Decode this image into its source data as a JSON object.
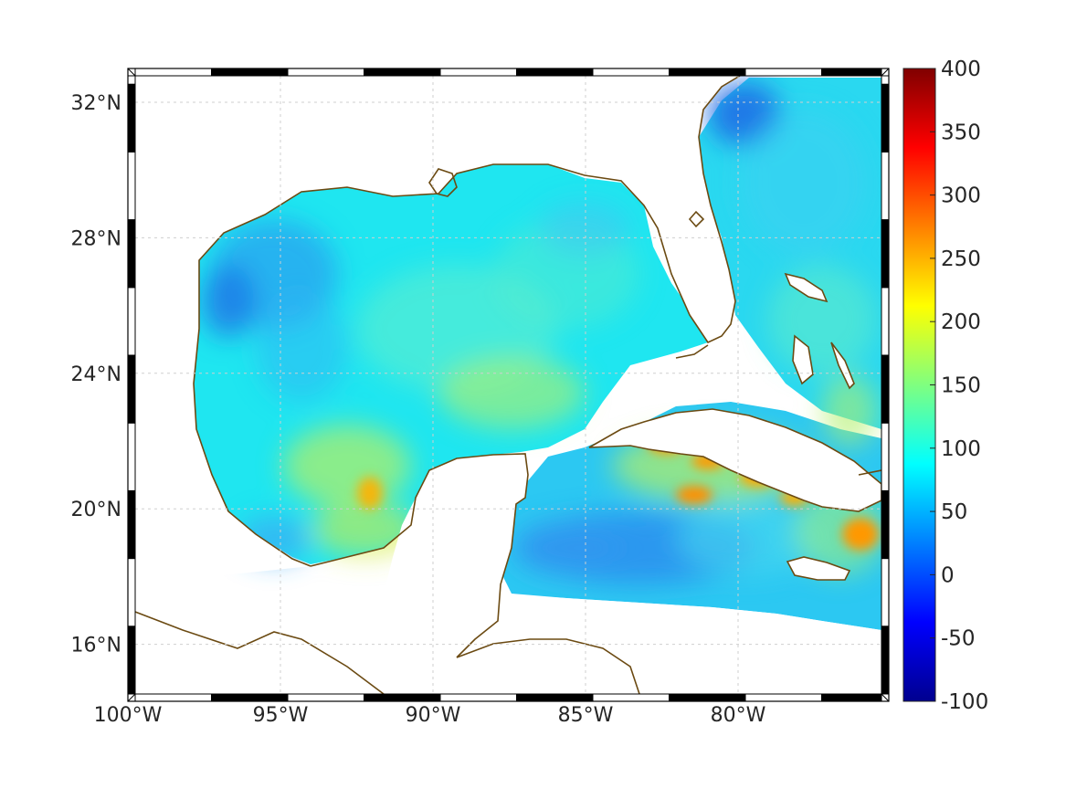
{
  "map": {
    "lon_ticks": [
      {
        "value": -100,
        "label": "100°W"
      },
      {
        "value": -95,
        "label": "95°W"
      },
      {
        "value": -90,
        "label": "90°W"
      },
      {
        "value": -85,
        "label": "85°W"
      },
      {
        "value": -80,
        "label": "80°W"
      }
    ],
    "lat_ticks": [
      {
        "value": 32,
        "label": "32°N"
      },
      {
        "value": 28,
        "label": "28°N"
      },
      {
        "value": 24,
        "label": "24°N"
      },
      {
        "value": 20,
        "label": "20°N"
      },
      {
        "value": 16,
        "label": "16°N"
      }
    ],
    "lon_range": [
      -100,
      -75
    ],
    "lat_range": [
      14.3,
      33
    ],
    "grid": true,
    "coastline_color": "#6b4a12",
    "land_color": "#ffffff"
  },
  "colorbar": {
    "range": [
      -100,
      400
    ],
    "ticks": [
      {
        "value": 400,
        "label": "400"
      },
      {
        "value": 350,
        "label": "350"
      },
      {
        "value": 300,
        "label": "300"
      },
      {
        "value": 250,
        "label": "250"
      },
      {
        "value": 200,
        "label": "200"
      },
      {
        "value": 150,
        "label": "150"
      },
      {
        "value": 100,
        "label": "100"
      },
      {
        "value": 50,
        "label": "50"
      },
      {
        "value": 0,
        "label": "0"
      },
      {
        "value": -50,
        "label": "-50"
      },
      {
        "value": -100,
        "label": "-100"
      }
    ],
    "colormap": "jet",
    "colormap_stops": [
      "#00008f",
      "#0000ff",
      "#00ffff",
      "#ffff00",
      "#ff0000",
      "#800000"
    ]
  }
}
